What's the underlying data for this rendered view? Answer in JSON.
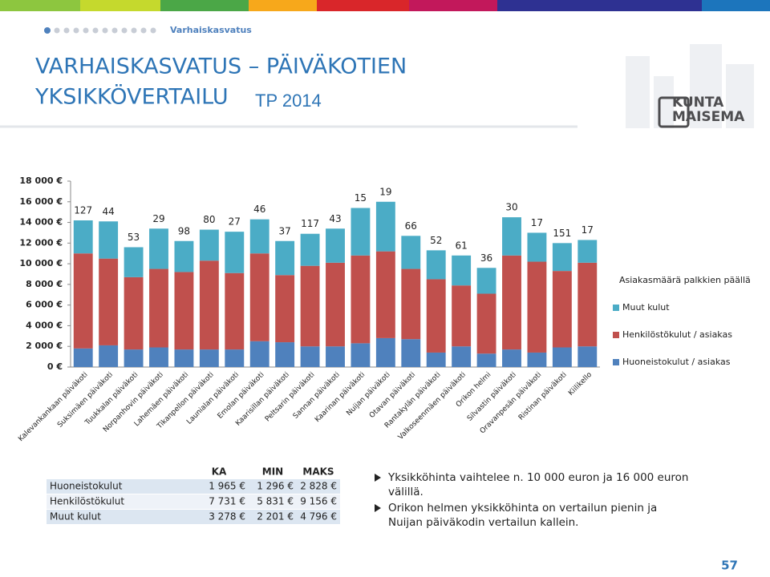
{
  "header": {
    "breadcrumb": "Varhaiskasvatus",
    "title_line1": "VARHAISKASVATUS – PÄIVÄKOTIEN",
    "title_line2": "YKSIKKÖVERTAILU",
    "title_suffix": "TP 2014",
    "logo_line1": "KUNTA",
    "logo_line2": "MAISEMA"
  },
  "chart_data": {
    "type": "stacked_bar",
    "categories": [
      "Kalevankankaan päiväkoti",
      "Suksimäen päiväkoti",
      "Tuukkalan päiväkoti",
      "Norpanhovin päiväkoti",
      "Lahemäen päiväkoti",
      "Tikanpellon päiväkoti",
      "Launialan päiväkoti",
      "Emolan päiväkoti",
      "Kaarisillan päiväkoti",
      "Peltsarin päiväkoti",
      "Sannan päiväkoti",
      "Kaarinan päiväkoti",
      "Nuijan päiväkoti",
      "Otavan päiväkoti",
      "Rantakylän päiväkoti",
      "Valkoseenmäen päiväkoti",
      "Orikon helmi",
      "Silvastin päiväkoti",
      "Oravanpesän päiväkoti",
      "Ristinan päiväkoti",
      "Kiilikello"
    ],
    "series": [
      {
        "name": "Huoneistokulut / asiakas",
        "color": "#4f81bd",
        "values": [
          1800,
          2100,
          1700,
          1900,
          1700,
          1700,
          1700,
          2500,
          2400,
          2000,
          2000,
          2300,
          2800,
          2700,
          1400,
          2000,
          1300,
          1700,
          1400,
          1900,
          2000
        ]
      },
      {
        "name": "Henkilöstökulut / asiakas",
        "color": "#c0504d",
        "values": [
          9200,
          8400,
          7000,
          7600,
          7500,
          8600,
          7400,
          8500,
          6500,
          7800,
          8100,
          8500,
          8400,
          6800,
          7100,
          5900,
          5800,
          9100,
          8800,
          7400,
          8100
        ]
      },
      {
        "name": "Muut kulut",
        "color": "#4bacc6",
        "values": [
          3200,
          3600,
          2900,
          3900,
          3000,
          3000,
          4000,
          3300,
          3300,
          3100,
          3300,
          4600,
          4800,
          3200,
          2800,
          2900,
          2500,
          3700,
          2800,
          2700,
          2200
        ]
      }
    ],
    "counts": [
      127,
      44,
      53,
      29,
      98,
      80,
      27,
      46,
      37,
      117,
      43,
      15,
      19,
      66,
      52,
      61,
      36,
      30,
      17,
      151,
      17
    ],
    "legend_title": "Asiakasmäärä palkkien päällä",
    "ylim": [
      0,
      18000
    ],
    "yticks": [
      {
        "value": 0,
        "label": "0 €"
      },
      {
        "value": 2000,
        "label": "2 000 €"
      },
      {
        "value": 4000,
        "label": "4 000 €"
      },
      {
        "value": 6000,
        "label": "6 000 €"
      },
      {
        "value": 8000,
        "label": "8 000 €"
      },
      {
        "value": 10000,
        "label": "10 000 €"
      },
      {
        "value": 12000,
        "label": "12 000 €"
      },
      {
        "value": 14000,
        "label": "14 000 €"
      },
      {
        "value": 16000,
        "label": "16 000 €"
      },
      {
        "value": 18000,
        "label": "18 000 €"
      }
    ],
    "legend": "right"
  },
  "table": {
    "header": [
      "KA",
      "MIN",
      "MAKS"
    ],
    "rows": [
      [
        "Huoneistokulut",
        "1 965 €",
        "1 296 €",
        "2 828 €"
      ],
      [
        "Henkilöstökulut",
        "7 731 €",
        "5 831 €",
        "9 156 €"
      ],
      [
        "Muut kulut",
        "3 278 €",
        "2 201 €",
        "4 796 €"
      ]
    ]
  },
  "bullets": [
    [
      "Yksikköhinta vaihtelee n. 10 000 euron ja 16 000 euron",
      "välillä."
    ],
    [
      "Orikon helmen yksikköhinta on vertailun pienin ja",
      "Nuijan päiväkodin vertailun kallein."
    ]
  ],
  "page_number": "57"
}
